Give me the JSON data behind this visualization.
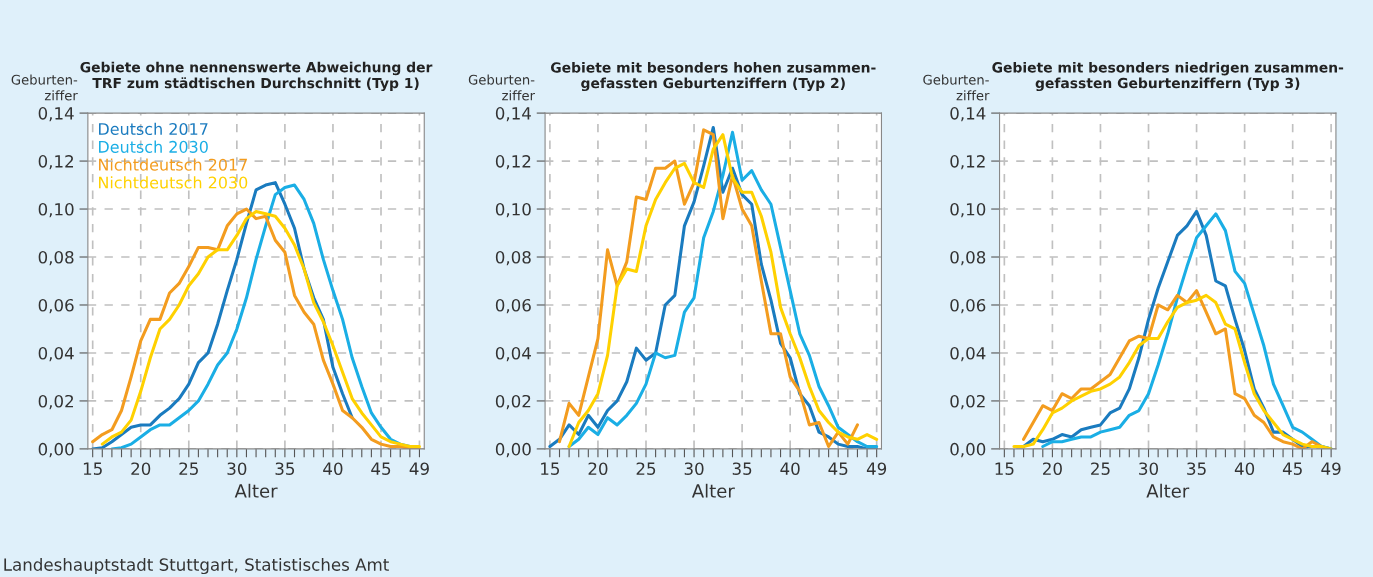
{
  "chart_data": [
    {
      "type": "line",
      "title": "Gebiete ohne nennenswerte Abweichung der\nTRF zum städtischen Durchschnitt (Typ 1)",
      "ylabel": "Geburten-\nziffer",
      "xlabel": "Alter",
      "x": [
        15,
        16,
        17,
        18,
        19,
        20,
        21,
        22,
        23,
        24,
        25,
        26,
        27,
        28,
        29,
        30,
        31,
        32,
        33,
        34,
        35,
        36,
        37,
        38,
        39,
        40,
        41,
        42,
        43,
        44,
        45,
        46,
        47,
        48,
        49
      ],
      "xlim": [
        14.5,
        49.5
      ],
      "ylim": [
        0,
        0.14
      ],
      "xticks": [
        {
          "value": 15,
          "label": "15"
        },
        {
          "value": 16,
          "label": null
        },
        {
          "value": 17,
          "label": null
        },
        {
          "value": 18,
          "label": null
        },
        {
          "value": 19,
          "label": null
        },
        {
          "value": 20,
          "label": "20"
        },
        {
          "value": 21,
          "label": null
        },
        {
          "value": 22,
          "label": null
        },
        {
          "value": 23,
          "label": null
        },
        {
          "value": 24,
          "label": null
        },
        {
          "value": 25,
          "label": "25"
        },
        {
          "value": 26,
          "label": null
        },
        {
          "value": 27,
          "label": null
        },
        {
          "value": 28,
          "label": null
        },
        {
          "value": 29,
          "label": null
        },
        {
          "value": 30,
          "label": "30"
        },
        {
          "value": 31,
          "label": null
        },
        {
          "value": 32,
          "label": null
        },
        {
          "value": 33,
          "label": null
        },
        {
          "value": 34,
          "label": null
        },
        {
          "value": 35,
          "label": "35"
        },
        {
          "value": 36,
          "label": null
        },
        {
          "value": 37,
          "label": null
        },
        {
          "value": 38,
          "label": null
        },
        {
          "value": 39,
          "label": null
        },
        {
          "value": 40,
          "label": "40"
        },
        {
          "value": 41,
          "label": null
        },
        {
          "value": 42,
          "label": null
        },
        {
          "value": 43,
          "label": null
        },
        {
          "value": 44,
          "label": null
        },
        {
          "value": 45,
          "label": "45"
        },
        {
          "value": 46,
          "label": null
        },
        {
          "value": 47,
          "label": null
        },
        {
          "value": 48,
          "label": null
        },
        {
          "value": 49,
          "label": "49"
        }
      ],
      "yticks": [
        {
          "value": 0,
          "label": "0,00"
        },
        {
          "value": 0.02,
          "label": "0,02"
        },
        {
          "value": 0.04,
          "label": "0,04"
        },
        {
          "value": 0.06,
          "label": "0,06"
        },
        {
          "value": 0.08,
          "label": "0,08"
        },
        {
          "value": 0.1,
          "label": "0,10"
        },
        {
          "value": 0.12,
          "label": "0,12"
        },
        {
          "value": 0.14,
          "label": "0,14"
        }
      ],
      "grid": true,
      "legend": "top left",
      "line_style": "solid",
      "annotations": [
        "Landeshauptstadt Stuttgart, Statistisches Amt"
      ],
      "series": [
        {
          "name": "Deutsch 2017",
          "color": "#1a7bbf",
          "values": [
            0.0,
            0.0005,
            0.003,
            0.006,
            0.009,
            0.01,
            0.01,
            0.014,
            0.017,
            0.021,
            0.027,
            0.036,
            0.04,
            0.052,
            0.066,
            0.079,
            0.094,
            0.108,
            0.11,
            0.111,
            0.102,
            0.092,
            0.075,
            0.063,
            0.054,
            0.034,
            0.023,
            0.013,
            null,
            null,
            null,
            null,
            null,
            null,
            null
          ]
        },
        {
          "name": "Deutsch 2030",
          "color": "#1aaee5",
          "values": [
            null,
            null,
            0.0,
            0.0005,
            0.002,
            0.005,
            0.008,
            0.01,
            0.01,
            0.013,
            0.016,
            0.02,
            0.027,
            0.035,
            0.04,
            0.05,
            0.063,
            0.079,
            0.093,
            0.106,
            0.109,
            0.11,
            0.104,
            0.094,
            0.079,
            0.066,
            0.054,
            0.038,
            0.026,
            0.015,
            0.009,
            0.004,
            0.002,
            0.001,
            null
          ]
        },
        {
          "name": "Nichtdeutsch 2017",
          "color": "#f39c1f",
          "values": [
            0.003,
            0.006,
            0.008,
            0.016,
            0.03,
            0.045,
            0.054,
            0.054,
            0.065,
            0.069,
            0.076,
            0.084,
            0.084,
            0.083,
            0.093,
            0.098,
            0.1,
            0.096,
            0.097,
            0.087,
            0.082,
            0.064,
            0.057,
            0.052,
            0.037,
            0.027,
            0.016,
            0.013,
            0.009,
            0.004,
            0.002,
            0.001,
            0.001,
            0.0,
            0.0
          ]
        },
        {
          "name": "Nichtdeutsch 2030",
          "color": "#ffd100",
          "values": [
            null,
            0.002,
            0.005,
            0.007,
            0.012,
            0.024,
            0.038,
            0.05,
            0.054,
            0.06,
            0.068,
            0.073,
            0.08,
            0.083,
            0.083,
            0.089,
            0.096,
            0.099,
            0.098,
            0.097,
            0.092,
            0.085,
            0.075,
            0.061,
            0.053,
            0.043,
            0.032,
            0.021,
            0.015,
            0.01,
            0.005,
            0.003,
            0.002,
            0.001,
            0.001
          ]
        }
      ]
    },
    {
      "type": "line",
      "title": "Gebiete mit besonders hohen zusammen-\ngefassten Geburtenziffern (Typ 2)",
      "ylabel": "Geburten-\nziffer",
      "xlabel": "Alter",
      "x": [
        15,
        16,
        17,
        18,
        19,
        20,
        21,
        22,
        23,
        24,
        25,
        26,
        27,
        28,
        29,
        30,
        31,
        32,
        33,
        34,
        35,
        36,
        37,
        38,
        39,
        40,
        41,
        42,
        43,
        44,
        45,
        46,
        47,
        48,
        49
      ],
      "xlim": [
        14.5,
        49.5
      ],
      "ylim": [
        0,
        0.14
      ],
      "xticks": [
        {
          "value": 15,
          "label": "15"
        },
        {
          "value": 16,
          "label": null
        },
        {
          "value": 17,
          "label": null
        },
        {
          "value": 18,
          "label": null
        },
        {
          "value": 19,
          "label": null
        },
        {
          "value": 20,
          "label": "20"
        },
        {
          "value": 21,
          "label": null
        },
        {
          "value": 22,
          "label": null
        },
        {
          "value": 23,
          "label": null
        },
        {
          "value": 24,
          "label": null
        },
        {
          "value": 25,
          "label": "25"
        },
        {
          "value": 26,
          "label": null
        },
        {
          "value": 27,
          "label": null
        },
        {
          "value": 28,
          "label": null
        },
        {
          "value": 29,
          "label": null
        },
        {
          "value": 30,
          "label": "30"
        },
        {
          "value": 31,
          "label": null
        },
        {
          "value": 32,
          "label": null
        },
        {
          "value": 33,
          "label": null
        },
        {
          "value": 34,
          "label": null
        },
        {
          "value": 35,
          "label": "35"
        },
        {
          "value": 36,
          "label": null
        },
        {
          "value": 37,
          "label": null
        },
        {
          "value": 38,
          "label": null
        },
        {
          "value": 39,
          "label": null
        },
        {
          "value": 40,
          "label": "40"
        },
        {
          "value": 41,
          "label": null
        },
        {
          "value": 42,
          "label": null
        },
        {
          "value": 43,
          "label": null
        },
        {
          "value": 44,
          "label": null
        },
        {
          "value": 45,
          "label": "45"
        },
        {
          "value": 46,
          "label": null
        },
        {
          "value": 47,
          "label": null
        },
        {
          "value": 48,
          "label": null
        },
        {
          "value": 49,
          "label": "49"
        }
      ],
      "yticks": [
        {
          "value": 0,
          "label": "0,00"
        },
        {
          "value": 0.02,
          "label": "0,02"
        },
        {
          "value": 0.04,
          "label": "0,04"
        },
        {
          "value": 0.06,
          "label": "0,06"
        },
        {
          "value": 0.08,
          "label": "0,08"
        },
        {
          "value": 0.1,
          "label": "0,10"
        },
        {
          "value": 0.12,
          "label": "0,12"
        },
        {
          "value": 0.14,
          "label": "0,14"
        }
      ],
      "grid": true,
      "line_style": "solid",
      "series": [
        {
          "color": "#1a7bbf",
          "values": [
            0.001,
            0.004,
            0.01,
            0.006,
            0.014,
            0.009,
            0.016,
            0.02,
            0.028,
            0.042,
            0.037,
            0.04,
            0.06,
            0.064,
            0.093,
            0.103,
            0.118,
            0.134,
            0.107,
            0.117,
            0.106,
            0.102,
            0.077,
            0.062,
            0.044,
            0.038,
            0.023,
            0.018,
            0.007,
            0.005,
            0.002,
            0.001,
            0.001,
            0.0,
            0.0
          ]
        },
        {
          "color": "#1aaee5",
          "values": [
            null,
            null,
            0.001,
            0.004,
            0.009,
            0.006,
            0.013,
            0.01,
            0.014,
            0.019,
            0.027,
            0.04,
            0.038,
            0.039,
            0.057,
            0.063,
            0.088,
            0.099,
            0.114,
            0.132,
            0.112,
            0.116,
            0.108,
            0.102,
            0.084,
            0.066,
            0.048,
            0.039,
            0.026,
            0.018,
            0.009,
            0.006,
            0.003,
            0.001,
            0.001
          ]
        },
        {
          "color": "#f39c1f",
          "values": [
            null,
            0.003,
            0.019,
            0.014,
            0.03,
            0.046,
            0.083,
            0.068,
            0.078,
            0.105,
            0.104,
            0.117,
            0.117,
            0.12,
            0.102,
            0.111,
            0.133,
            0.131,
            0.096,
            0.114,
            0.1,
            0.093,
            0.07,
            0.048,
            0.048,
            0.03,
            0.024,
            0.01,
            0.011,
            0.001,
            0.007,
            0.002,
            0.01,
            null,
            null
          ]
        },
        {
          "color": "#ffd100",
          "values": [
            null,
            null,
            0.001,
            0.011,
            0.016,
            0.023,
            0.039,
            0.068,
            0.075,
            0.074,
            0.093,
            0.104,
            0.111,
            0.117,
            0.119,
            0.111,
            0.109,
            0.125,
            0.131,
            0.113,
            0.107,
            0.107,
            0.097,
            0.082,
            0.059,
            0.048,
            0.038,
            0.026,
            0.016,
            0.011,
            0.007,
            0.005,
            0.004,
            0.006,
            0.004
          ]
        }
      ]
    },
    {
      "type": "line",
      "title": "Gebiete mit besonders niedrigen zusammen-\ngefassten Geburtenziffern (Typ 3)",
      "ylabel": "Geburten-\nziffer",
      "xlabel": "Alter",
      "x": [
        16,
        17,
        18,
        19,
        20,
        21,
        22,
        23,
        24,
        25,
        26,
        27,
        28,
        29,
        30,
        31,
        32,
        33,
        34,
        35,
        36,
        37,
        38,
        39,
        40,
        41,
        42,
        43,
        44,
        45,
        46,
        47,
        48,
        49
      ],
      "xlim": [
        14.5,
        49.5
      ],
      "ylim": [
        0,
        0.14
      ],
      "xticks": [
        {
          "value": 15,
          "label": "15"
        },
        {
          "value": 16,
          "label": null
        },
        {
          "value": 17,
          "label": null
        },
        {
          "value": 18,
          "label": null
        },
        {
          "value": 19,
          "label": null
        },
        {
          "value": 20,
          "label": "20"
        },
        {
          "value": 21,
          "label": null
        },
        {
          "value": 22,
          "label": null
        },
        {
          "value": 23,
          "label": null
        },
        {
          "value": 24,
          "label": null
        },
        {
          "value": 25,
          "label": "25"
        },
        {
          "value": 26,
          "label": null
        },
        {
          "value": 27,
          "label": null
        },
        {
          "value": 28,
          "label": null
        },
        {
          "value": 29,
          "label": null
        },
        {
          "value": 30,
          "label": "30"
        },
        {
          "value": 31,
          "label": null
        },
        {
          "value": 32,
          "label": null
        },
        {
          "value": 33,
          "label": null
        },
        {
          "value": 34,
          "label": null
        },
        {
          "value": 35,
          "label": "35"
        },
        {
          "value": 36,
          "label": null
        },
        {
          "value": 37,
          "label": null
        },
        {
          "value": 38,
          "label": null
        },
        {
          "value": 39,
          "label": null
        },
        {
          "value": 40,
          "label": "40"
        },
        {
          "value": 41,
          "label": null
        },
        {
          "value": 42,
          "label": null
        },
        {
          "value": 43,
          "label": null
        },
        {
          "value": 44,
          "label": null
        },
        {
          "value": 45,
          "label": "45"
        },
        {
          "value": 46,
          "label": null
        },
        {
          "value": 47,
          "label": null
        },
        {
          "value": 48,
          "label": null
        },
        {
          "value": 49,
          "label": "49"
        }
      ],
      "yticks": [
        {
          "value": 0,
          "label": "0,00"
        },
        {
          "value": 0.02,
          "label": "0,02"
        },
        {
          "value": 0.04,
          "label": "0,04"
        },
        {
          "value": 0.06,
          "label": "0,06"
        },
        {
          "value": 0.08,
          "label": "0,08"
        },
        {
          "value": 0.1,
          "label": "0,10"
        },
        {
          "value": 0.12,
          "label": "0,12"
        },
        {
          "value": 0.14,
          "label": "0,14"
        }
      ],
      "grid": true,
      "line_style": "solid",
      "series": [
        {
          "color": "#1a7bbf",
          "values": [
            null,
            0.001,
            0.004,
            0.003,
            0.004,
            0.006,
            0.005,
            0.008,
            0.009,
            0.01,
            0.015,
            0.017,
            0.025,
            0.038,
            0.054,
            0.067,
            0.078,
            0.089,
            0.093,
            0.099,
            0.089,
            0.07,
            0.068,
            0.054,
            0.041,
            0.025,
            0.017,
            0.007,
            0.007,
            0.004,
            0.001,
            0.001,
            0.001,
            0.0
          ]
        },
        {
          "color": "#1aaee5",
          "values": [
            null,
            null,
            null,
            0.001,
            0.003,
            0.003,
            0.004,
            0.005,
            0.005,
            0.007,
            0.008,
            0.009,
            0.014,
            0.016,
            0.023,
            0.035,
            0.048,
            0.063,
            0.076,
            0.088,
            0.093,
            0.098,
            0.091,
            0.074,
            0.069,
            0.056,
            0.043,
            0.027,
            0.018,
            0.009,
            0.007,
            0.004,
            0.001,
            0.0
          ]
        },
        {
          "color": "#f39c1f",
          "values": [
            null,
            0.004,
            0.011,
            0.018,
            0.016,
            0.023,
            0.021,
            0.025,
            0.025,
            0.028,
            0.031,
            0.038,
            0.045,
            0.047,
            0.046,
            0.06,
            0.058,
            0.064,
            0.061,
            0.066,
            0.057,
            0.048,
            0.05,
            0.023,
            0.021,
            0.014,
            0.011,
            0.005,
            0.003,
            0.002,
            0.0,
            0.003,
            0.001,
            null
          ]
        },
        {
          "color": "#ffd100",
          "values": [
            0.001,
            0.001,
            0.002,
            0.008,
            0.015,
            0.017,
            0.02,
            0.022,
            0.024,
            0.025,
            0.027,
            0.03,
            0.036,
            0.043,
            0.046,
            0.046,
            0.053,
            0.059,
            0.061,
            0.062,
            0.064,
            0.061,
            0.052,
            0.05,
            0.036,
            0.023,
            0.016,
            0.011,
            0.006,
            0.004,
            0.002,
            0.001,
            0.001,
            0.0
          ]
        }
      ]
    }
  ]
}
